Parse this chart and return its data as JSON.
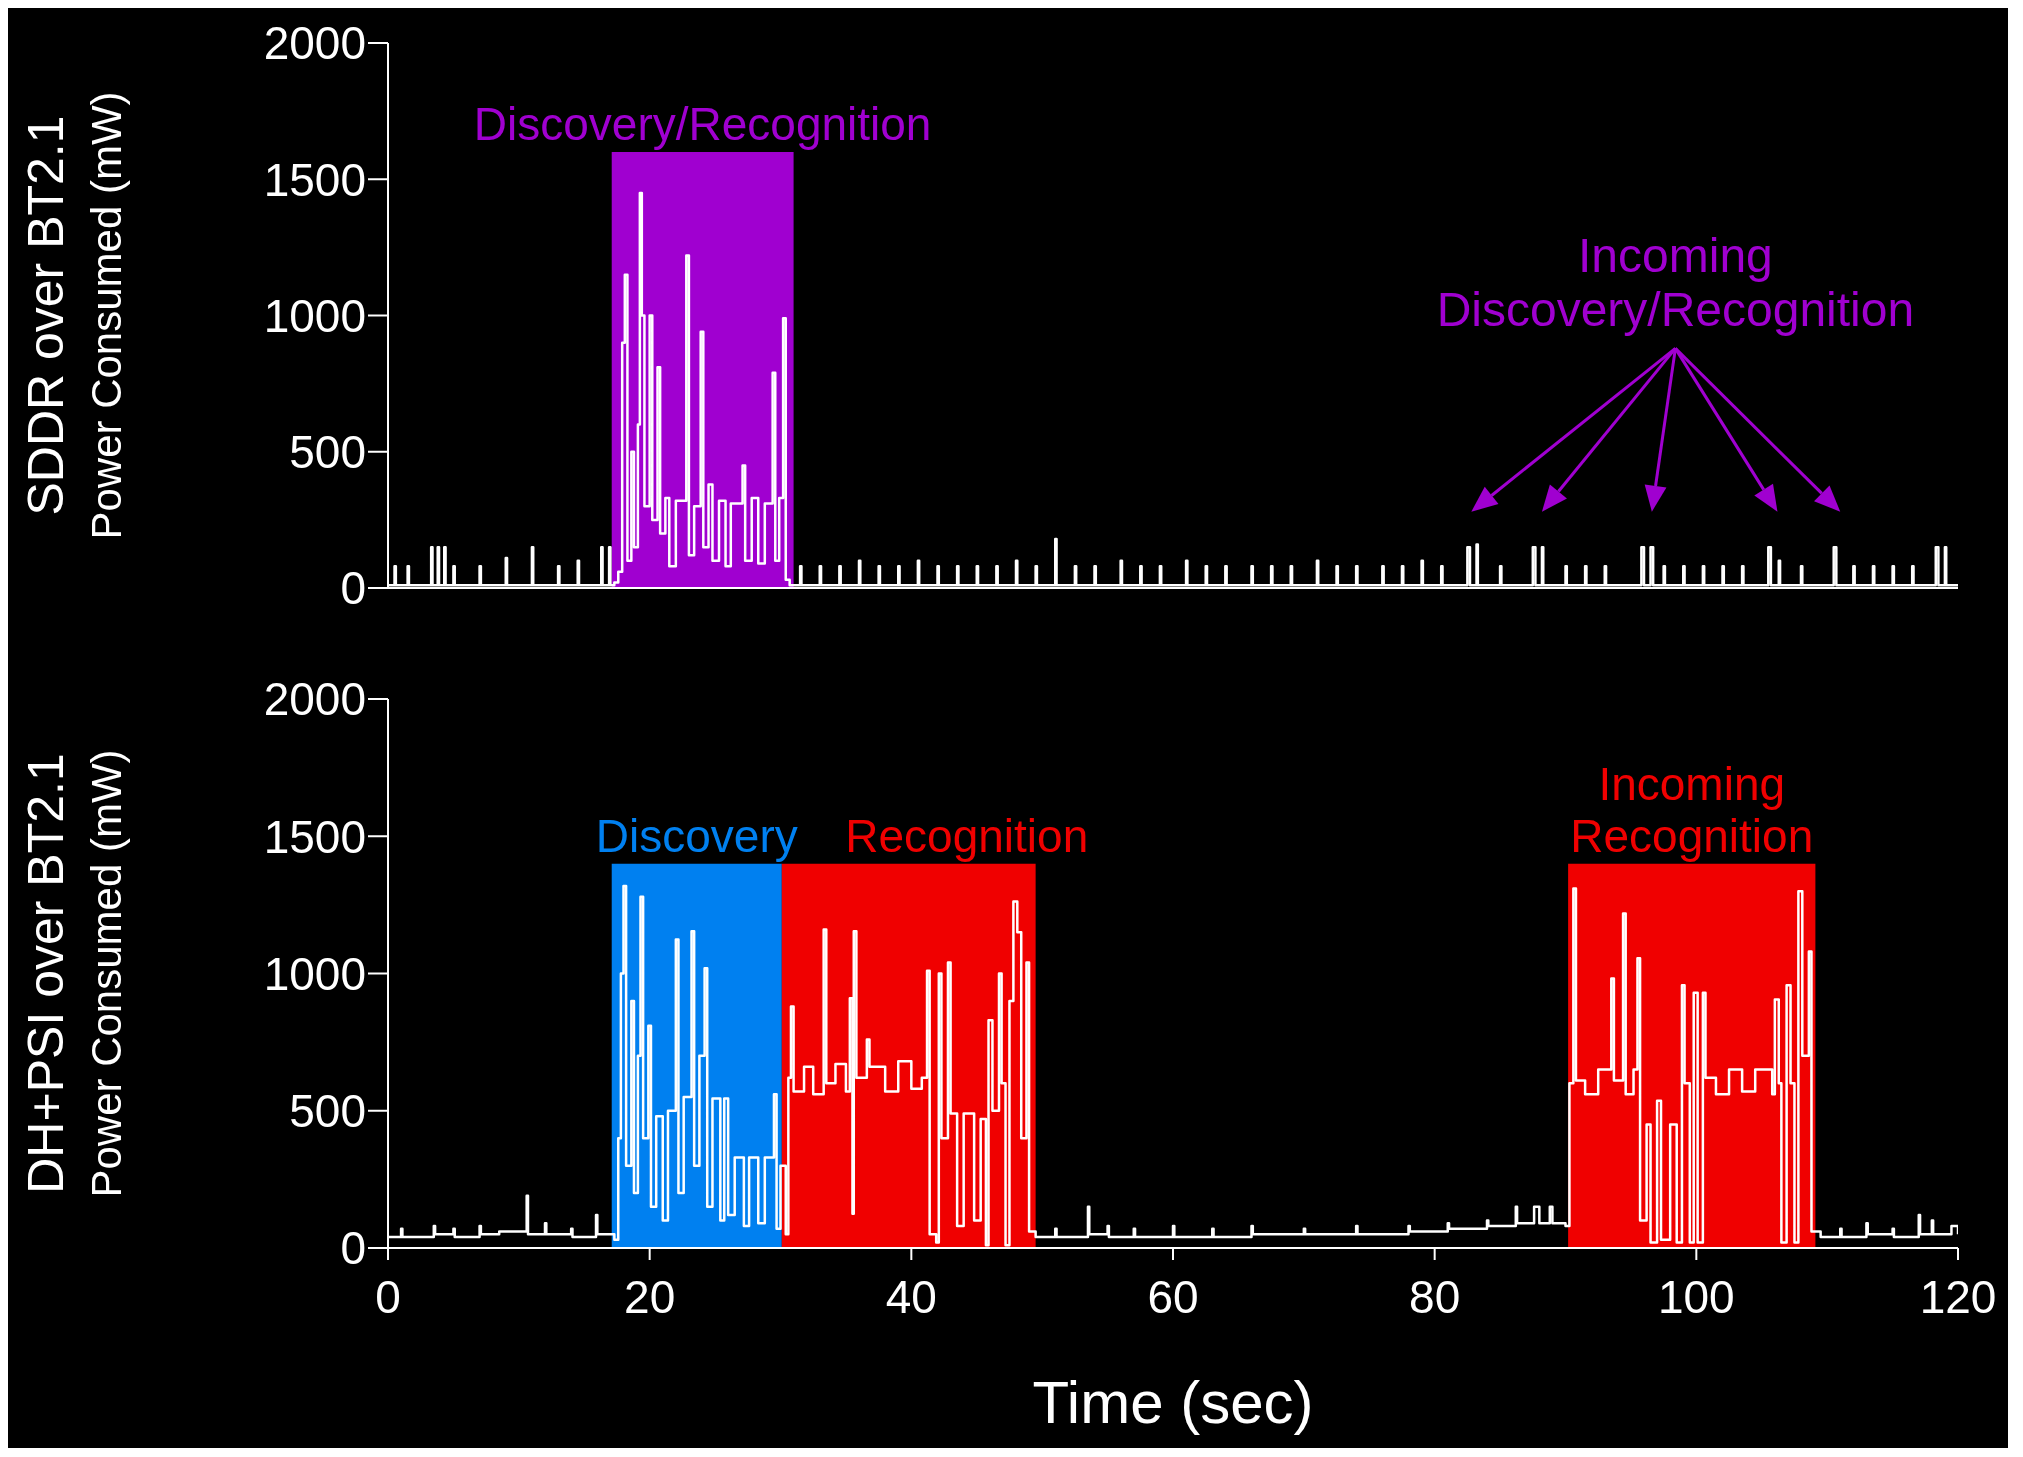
{
  "chart_data": [
    {
      "type": "step",
      "ylabel": "SDDR over BT2.1\nPower Consumed (mW)",
      "xlim": [
        0,
        120
      ],
      "ylim": [
        0,
        2000
      ],
      "yticks": [
        0,
        500,
        1000,
        1500,
        2000
      ],
      "tick_labels": "y",
      "bands": [
        {
          "axis": "x",
          "from": 17.1,
          "to": 31,
          "label": "Discovery/Recognition",
          "color": "#a000d0"
        }
      ],
      "annotations": [
        "Incoming\nDiscovery/Recognition"
      ],
      "series": [
        {
          "color": "#ffffff",
          "x": [
            0,
            0.5,
            0.6,
            1.5,
            1.6,
            3.3,
            3.4,
            3.8,
            3.9,
            4.3,
            4.4,
            5.0,
            5.1,
            7.0,
            7.1,
            9.0,
            9.1,
            11.0,
            11.1,
            13.0,
            13.1,
            14.5,
            14.6,
            16.3,
            16.4,
            16.9,
            17.0,
            17.3,
            17.6,
            17.9,
            18.1,
            18.3,
            18.6,
            18.8,
            19.1,
            19.25,
            19.4,
            19.6,
            20.0,
            20.2,
            20.6,
            20.8,
            21.2,
            21.5,
            22.0,
            22.8,
            23.0,
            23.4,
            23.9,
            24.1,
            24.5,
            24.8,
            25.3,
            25.8,
            26.2,
            27.1,
            27.3,
            27.8,
            28.3,
            28.8,
            29.4,
            29.6,
            29.9,
            30.2,
            30.4,
            30.7,
            31.5,
            31.6,
            33,
            33.1,
            34.5,
            34.6,
            36,
            36.1,
            37.5,
            37.6,
            39,
            39.1,
            40.5,
            40.6,
            42,
            42.1,
            43.5,
            43.6,
            45,
            45.1,
            46.5,
            46.6,
            48,
            48.1,
            49.5,
            49.6,
            51,
            51.1,
            52.5,
            52.6,
            54,
            54.1,
            56,
            56.1,
            57.5,
            57.6,
            59,
            59.1,
            61,
            61.1,
            62.5,
            62.6,
            64,
            64.1,
            66,
            66.1,
            67.5,
            67.6,
            69,
            69.1,
            71,
            71.1,
            72.5,
            72.6,
            74,
            74.1,
            76,
            76.1,
            77.5,
            77.6,
            79,
            79.1,
            80.5,
            80.6,
            82.5,
            82.7,
            83.2,
            83.3,
            85,
            85.1,
            87.5,
            87.7,
            88.2,
            88.3,
            90,
            90.1,
            91.5,
            91.6,
            93,
            93.1,
            95.8,
            96.0,
            96.5,
            96.7,
            97.5,
            97.6,
            99,
            99.1,
            100.5,
            100.6,
            102,
            102.1,
            103.5,
            103.6,
            105.5,
            105.7,
            106.3,
            106.4,
            108,
            108.1,
            110.5,
            110.7,
            112,
            112.1,
            113.5,
            113.6,
            115,
            115.1,
            116.5,
            116.6,
            118.3,
            118.5,
            119,
            119.1,
            120
          ],
          "values": [
            10,
            80,
            10,
            80,
            10,
            150,
            10,
            150,
            10,
            150,
            10,
            80,
            10,
            80,
            10,
            110,
            10,
            150,
            10,
            80,
            10,
            100,
            10,
            150,
            10,
            150,
            10,
            20,
            60,
            900,
            1150,
            100,
            500,
            150,
            600,
            1450,
            1000,
            300,
            1000,
            250,
            810,
            200,
            330,
            80,
            320,
            1220,
            120,
            300,
            940,
            150,
            380,
            100,
            320,
            80,
            310,
            450,
            100,
            330,
            90,
            310,
            790,
            100,
            330,
            990,
            30,
            10,
            80,
            10,
            80,
            10,
            80,
            10,
            100,
            10,
            80,
            10,
            80,
            10,
            100,
            10,
            80,
            10,
            80,
            10,
            80,
            10,
            80,
            10,
            100,
            10,
            80,
            10,
            180,
            10,
            80,
            10,
            80,
            10,
            100,
            10,
            80,
            10,
            80,
            10,
            100,
            10,
            80,
            10,
            80,
            10,
            80,
            10,
            80,
            10,
            80,
            10,
            100,
            10,
            80,
            10,
            80,
            10,
            80,
            10,
            80,
            10,
            100,
            10,
            80,
            10,
            150,
            10,
            160,
            10,
            80,
            10,
            150,
            10,
            150,
            10,
            80,
            10,
            80,
            10,
            80,
            10,
            150,
            10,
            150,
            10,
            80,
            10,
            80,
            10,
            80,
            10,
            80,
            10,
            80,
            10,
            150,
            10,
            100,
            10,
            80,
            10,
            150,
            10,
            80,
            10,
            80,
            10,
            80,
            10,
            80,
            10,
            150,
            10,
            150,
            10,
            10
          ]
        }
      ]
    },
    {
      "type": "step",
      "ylabel": "DH+PSI over BT2.1\nPower Consumed (mW)",
      "xlabel": "Time (sec)",
      "xlim": [
        0,
        120
      ],
      "xticks": [
        0,
        20,
        40,
        60,
        80,
        100,
        120
      ],
      "ylim": [
        0,
        2000
      ],
      "yticks": [
        0,
        500,
        1000,
        1500,
        2000
      ],
      "bands": [
        {
          "axis": "x",
          "from": 17.1,
          "to": 30.1,
          "label": "Discovery",
          "color": "#0080f0"
        },
        {
          "axis": "x",
          "from": 30.1,
          "to": 49.5,
          "label": "Recognition",
          "color": "#f00000"
        },
        {
          "axis": "x",
          "from": 90.2,
          "to": 109.1,
          "label": "Incoming\nRecognition",
          "color": "#f00000"
        }
      ],
      "series": [
        {
          "color": "#ffffff",
          "x": [
            0,
            1,
            1.1,
            3.5,
            3.6,
            5,
            5.1,
            7,
            7.1,
            8.5,
            10.6,
            10.7,
            12,
            12.1,
            14,
            14.1,
            15.9,
            16,
            17.3,
            17.6,
            17.8,
            18.0,
            18.2,
            18.6,
            18.8,
            19.1,
            19.3,
            19.5,
            19.9,
            20.1,
            20.5,
            21,
            21.4,
            22.0,
            22.2,
            22.6,
            23.2,
            23.4,
            23.8,
            24.2,
            24.4,
            24.8,
            25.4,
            25.7,
            26.0,
            26.5,
            27.2,
            27.6,
            28.3,
            28.8,
            29.5,
            29.7,
            30.0,
            30.4,
            30.6,
            30.8,
            31.0,
            31.8,
            32.5,
            33.3,
            33.5,
            34.2,
            35.0,
            35.3,
            35.5,
            35.6,
            35.8,
            36.6,
            36.8,
            38,
            39,
            40,
            40.8,
            41.2,
            41.4,
            41.9,
            42.1,
            42.3,
            42.8,
            43,
            43.5,
            44,
            44.8,
            45.3,
            45.7,
            45.9,
            46.2,
            46.7,
            46.9,
            47.2,
            47.5,
            47.8,
            48.1,
            48.4,
            48.8,
            49.0,
            49.5,
            51,
            51.1,
            53.5,
            53.6,
            55,
            55.1,
            57,
            57.1,
            60,
            60.1,
            63,
            63.1,
            66,
            66.1,
            70,
            70.1,
            74,
            74.1,
            78,
            78.1,
            81,
            81.1,
            84,
            84.1,
            86.2,
            86.3,
            87.6,
            88,
            88.8,
            89,
            90.0,
            90.3,
            90.6,
            90.8,
            91.5,
            92.5,
            93.5,
            93.7,
            94.4,
            94.6,
            95.2,
            95.5,
            95.7,
            96.2,
            96.5,
            97,
            97.3,
            98,
            98.5,
            98.9,
            99.1,
            99.5,
            99.8,
            100.1,
            100.5,
            100.7,
            101.5,
            102.5,
            103.5,
            104.5,
            105.8,
            106.0,
            106.3,
            106.5,
            106.9,
            107.2,
            107.5,
            107.8,
            108.1,
            108.6,
            108.8,
            109.5,
            111,
            111.1,
            113,
            113.1,
            115,
            115.1,
            117,
            117.1,
            118,
            118.1,
            119.5,
            120
          ],
          "values": [
            40,
            70,
            40,
            80,
            50,
            70,
            40,
            80,
            50,
            60,
            190,
            50,
            90,
            50,
            70,
            40,
            120,
            50,
            30,
            400,
            1000,
            1319,
            300,
            900,
            200,
            700,
            1280,
            400,
            810,
            150,
            480,
            100,
            500,
            1124,
            200,
            550,
            1154,
            300,
            700,
            1019,
            150,
            545,
            100,
            545,
            120,
            330,
            80,
            330,
            90,
            330,
            560,
            70,
            300,
            50,
            620,
            880,
            570,
            660,
            560,
            1160,
            600,
            670,
            570,
            910,
            125,
            1154,
            620,
            760,
            660,
            570,
            680,
            580,
            620,
            1010,
            50,
            20,
            1000,
            400,
            1040,
            490,
            80,
            490,
            100,
            470,
            10,
            830,
            500,
            1000,
            600,
            10,
            900,
            1262,
            1150,
            400,
            1040,
            60,
            40,
            70,
            40,
            150,
            50,
            80,
            40,
            70,
            40,
            80,
            40,
            70,
            40,
            80,
            50,
            70,
            50,
            80,
            50,
            80,
            60,
            90,
            70,
            100,
            80,
            150,
            90,
            150,
            90,
            150,
            90,
            80,
            600,
            1310,
            610,
            560,
            650,
            982,
            610,
            1219,
            560,
            650,
            1056,
            100,
            450,
            20,
            536,
            30,
            450,
            20,
            957,
            600,
            20,
            930,
            20,
            930,
            620,
            560,
            650,
            570,
            650,
            560,
            905,
            600,
            20,
            957,
            600,
            20,
            1300,
            700,
            1080,
            60,
            40,
            70,
            40,
            90,
            50,
            70,
            40,
            120,
            50,
            100,
            50,
            80,
            50
          ]
        }
      ]
    }
  ]
}
